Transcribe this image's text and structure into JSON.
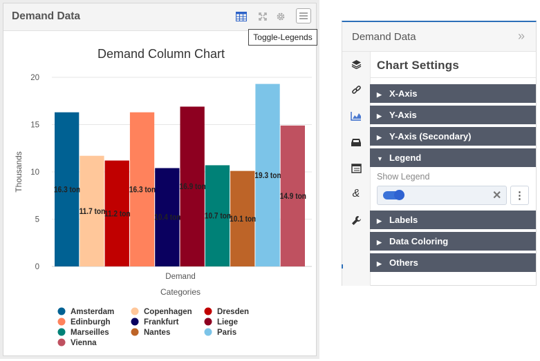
{
  "widget": {
    "title": "Demand Data",
    "toolbar": {
      "table_icon": "table-icon",
      "expand_icon": "expand-icon",
      "gear_icon": "gear-icon",
      "menu_icon": "hamburger-icon"
    },
    "tooltip": "Toggle-Legends"
  },
  "chart_data": {
    "type": "bar",
    "title": "Demand Column Chart",
    "xlabel": "Categories",
    "ylabel": "Thousands",
    "categories": [
      "Demand"
    ],
    "ylim": [
      0,
      20
    ],
    "yticks": [
      "0",
      "5",
      "10",
      "15",
      "20"
    ],
    "grid": true,
    "legend_position": "bottom",
    "series": [
      {
        "name": "Amsterdam",
        "value": 16.3,
        "label": "16.3 ton",
        "color": "#006193"
      },
      {
        "name": "Copenhagen",
        "value": 11.7,
        "label": "11.7 ton",
        "color": "#ffc79a"
      },
      {
        "name": "Dresden",
        "value": 11.2,
        "label": "11.2 ton",
        "color": "#c00000"
      },
      {
        "name": "Edinburgh",
        "value": 16.3,
        "label": "16.3 ton",
        "color": "#ff825c"
      },
      {
        "name": "Frankfurt",
        "value": 10.4,
        "label": "10.4 ton",
        "color": "#0a005f"
      },
      {
        "name": "Liege",
        "value": 16.9,
        "label": "16.9 ton",
        "color": "#8d0020"
      },
      {
        "name": "Marseilles",
        "value": 10.7,
        "label": "10.7 ton",
        "color": "#008177"
      },
      {
        "name": "Nantes",
        "value": 10.1,
        "label": "10.1 ton",
        "color": "#bd6428"
      },
      {
        "name": "Paris",
        "value": 19.3,
        "label": "19.3 ton",
        "color": "#7cc4e8"
      },
      {
        "name": "Vienna",
        "value": 14.9,
        "label": "14.9 ton",
        "color": "#bf5160"
      }
    ]
  },
  "panel": {
    "title": "Demand Data",
    "collapse_icon": "double-chevron-right-icon",
    "settings_title": "Chart Settings",
    "rail_icons": [
      "layers-icon",
      "link-icon",
      "chart-icon",
      "inbox-icon",
      "news-icon",
      "ampersand-icon",
      "wrench-icon"
    ],
    "sections_top": [
      {
        "label": "X-Axis",
        "expanded": false
      },
      {
        "label": "Y-Axis",
        "expanded": false
      },
      {
        "label": "Y-Axis (Secondary)",
        "expanded": false
      },
      {
        "label": "Legend",
        "expanded": true
      }
    ],
    "legend": {
      "show_legend_label": "Show Legend",
      "show_legend": true
    },
    "sections_bottom": [
      {
        "label": "Labels",
        "expanded": false
      },
      {
        "label": "Data Coloring",
        "expanded": false
      },
      {
        "label": "Others",
        "expanded": false
      }
    ]
  }
}
